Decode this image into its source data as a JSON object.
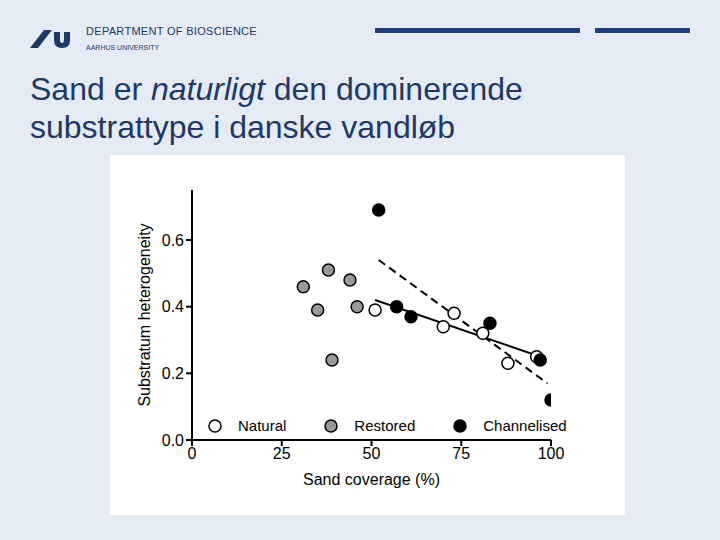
{
  "header": {
    "department": "DEPARTMENT OF BIOSCIENCE",
    "university": "AARHUS UNIVERSITY"
  },
  "title": {
    "text": "Sand er naturligt den dominerende substrattype i danske vandløb",
    "emphasis": "naturligt"
  },
  "chart_data": {
    "type": "scatter",
    "x_label": "Sand coverage (%)",
    "y_label": "Substratum heterogeneity",
    "xlim": [
      0,
      100
    ],
    "xticks": [
      0,
      25,
      50,
      75,
      100
    ],
    "ylim": [
      0,
      0.75
    ],
    "yticks": [
      {
        "value": 0,
        "label": "0.0"
      },
      0.2,
      0.4,
      0.6
    ],
    "grid": false,
    "legend": "bottom",
    "series": [
      {
        "name": "Natural",
        "type": "scatter",
        "marker": "open_circle",
        "color": "#000000",
        "x": [
          51,
          73,
          70,
          81,
          88,
          96
        ],
        "values": [
          0.39,
          0.38,
          0.34,
          0.32,
          0.23,
          0.25
        ]
      },
      {
        "name": "Restored",
        "type": "scatter",
        "marker": "circle",
        "color": "#999999",
        "x": [
          31,
          35,
          38,
          39,
          44,
          46
        ],
        "values": [
          0.46,
          0.39,
          0.51,
          0.24,
          0.48,
          0.4
        ]
      },
      {
        "name": "Channelised",
        "type": "scatter",
        "marker": "circle",
        "color": "#000000",
        "x": [
          52,
          57,
          61,
          83,
          97,
          100
        ],
        "values": [
          0.69,
          0.4,
          0.37,
          0.35,
          0.24,
          0.12
        ]
      },
      {
        "type": "line",
        "line_style": "dashed",
        "color": "#000000",
        "x": [
          52,
          99
        ],
        "values": [
          0.54,
          0.17
        ]
      },
      {
        "type": "line",
        "line_style": "solid",
        "color": "#000000",
        "x": [
          51,
          97
        ],
        "values": [
          0.42,
          0.25
        ]
      }
    ]
  }
}
